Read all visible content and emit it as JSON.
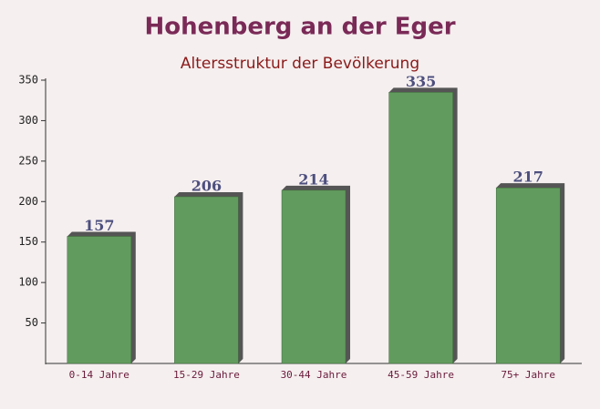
{
  "chart_data": {
    "type": "bar",
    "title": "Hohenberg an der Eger",
    "subtitle": "Altersstruktur der Bevölkerung",
    "categories": [
      "0-14 Jahre",
      "15-29 Jahre",
      "30-44 Jahre",
      "45-59 Jahre",
      "75+ Jahre"
    ],
    "values": [
      157,
      206,
      214,
      335,
      217
    ],
    "color": "#629b5e",
    "ylim": [
      0,
      350
    ],
    "yticks": [
      50,
      100,
      150,
      200,
      250,
      300,
      350
    ]
  }
}
